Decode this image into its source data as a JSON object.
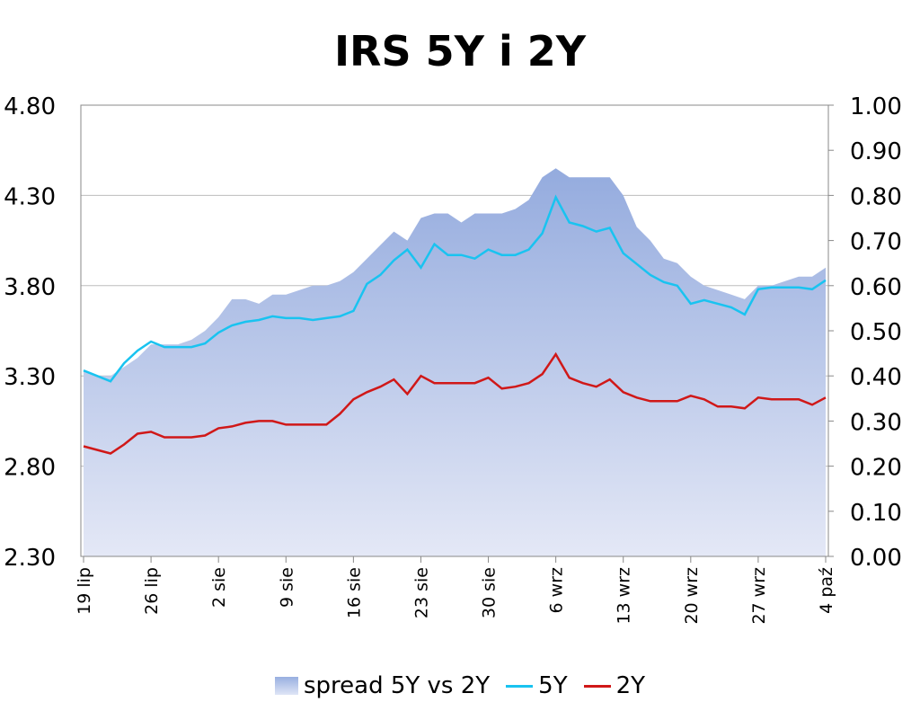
{
  "chart_data": {
    "type": "line",
    "title": "IRS 5Y i 2Y",
    "y_left": {
      "ticks": [
        "2.30",
        "2.80",
        "3.30",
        "3.80",
        "4.30",
        "4.80"
      ],
      "range": [
        2.3,
        4.8
      ]
    },
    "y_right": {
      "ticks": [
        "0.00",
        "0.10",
        "0.20",
        "0.30",
        "0.40",
        "0.50",
        "0.60",
        "0.70",
        "0.80",
        "0.90",
        "1.00"
      ],
      "range": [
        0,
        1.0
      ]
    },
    "x_range": [
      0,
      55
    ],
    "x_ticks": [
      {
        "i": 0,
        "label": "19 lip"
      },
      {
        "i": 5,
        "label": "26 lip"
      },
      {
        "i": 10,
        "label": "2 sie"
      },
      {
        "i": 15,
        "label": "9 sie"
      },
      {
        "i": 20,
        "label": "16 sie"
      },
      {
        "i": 25,
        "label": "23 sie"
      },
      {
        "i": 30,
        "label": "30 sie"
      },
      {
        "i": 35,
        "label": "6 wrz"
      },
      {
        "i": 40,
        "label": "13 wrz"
      },
      {
        "i": 45,
        "label": "20 wrz"
      },
      {
        "i": 50,
        "label": "27 wrz"
      },
      {
        "i": 55,
        "label": "4 paź"
      }
    ],
    "grid": true,
    "legend_position": "bottom",
    "series": [
      {
        "name": "spread 5Y vs 2Y",
        "kind": "area",
        "axis": "right",
        "color": "#98afe0",
        "points": [
          [
            0,
            0.41
          ],
          [
            1,
            0.4
          ],
          [
            2,
            0.4
          ],
          [
            3,
            0.42
          ],
          [
            4,
            0.44
          ],
          [
            5,
            0.47
          ],
          [
            6,
            0.47
          ],
          [
            7,
            0.47
          ],
          [
            8,
            0.48
          ],
          [
            9,
            0.5
          ],
          [
            10,
            0.53
          ],
          [
            11,
            0.57
          ],
          [
            12,
            0.57
          ],
          [
            13,
            0.56
          ],
          [
            14,
            0.58
          ],
          [
            15,
            0.58
          ],
          [
            16,
            0.59
          ],
          [
            17,
            0.6
          ],
          [
            18,
            0.6
          ],
          [
            19,
            0.61
          ],
          [
            20,
            0.63
          ],
          [
            21,
            0.66
          ],
          [
            22,
            0.69
          ],
          [
            23,
            0.72
          ],
          [
            24,
            0.7
          ],
          [
            25,
            0.75
          ],
          [
            26,
            0.76
          ],
          [
            27,
            0.76
          ],
          [
            28,
            0.74
          ],
          [
            29,
            0.76
          ],
          [
            30,
            0.76
          ],
          [
            31,
            0.76
          ],
          [
            32,
            0.77
          ],
          [
            33,
            0.79
          ],
          [
            34,
            0.84
          ],
          [
            35,
            0.86
          ],
          [
            36,
            0.84
          ],
          [
            37,
            0.84
          ],
          [
            38,
            0.84
          ],
          [
            39,
            0.84
          ],
          [
            40,
            0.8
          ],
          [
            41,
            0.73
          ],
          [
            42,
            0.7
          ],
          [
            43,
            0.66
          ],
          [
            44,
            0.65
          ],
          [
            45,
            0.62
          ],
          [
            46,
            0.6
          ],
          [
            47,
            0.59
          ],
          [
            48,
            0.58
          ],
          [
            49,
            0.57
          ],
          [
            50,
            0.6
          ],
          [
            51,
            0.6
          ],
          [
            52,
            0.61
          ],
          [
            53,
            0.62
          ],
          [
            54,
            0.62
          ],
          [
            55,
            0.64
          ]
        ]
      },
      {
        "name": "5Y",
        "kind": "line",
        "axis": "left",
        "color": "#19c3f0",
        "points": [
          [
            0,
            3.33
          ],
          [
            1,
            3.3
          ],
          [
            2,
            3.27
          ],
          [
            3,
            3.37
          ],
          [
            4,
            3.44
          ],
          [
            5,
            3.49
          ],
          [
            6,
            3.46
          ],
          [
            7,
            3.46
          ],
          [
            8,
            3.46
          ],
          [
            9,
            3.48
          ],
          [
            10,
            3.54
          ],
          [
            11,
            3.58
          ],
          [
            12,
            3.6
          ],
          [
            13,
            3.61
          ],
          [
            14,
            3.63
          ],
          [
            15,
            3.62
          ],
          [
            16,
            3.62
          ],
          [
            17,
            3.61
          ],
          [
            18,
            3.62
          ],
          [
            19,
            3.63
          ],
          [
            20,
            3.66
          ],
          [
            21,
            3.81
          ],
          [
            22,
            3.86
          ],
          [
            23,
            3.94
          ],
          [
            24,
            4.0
          ],
          [
            25,
            3.9
          ],
          [
            26,
            4.03
          ],
          [
            27,
            3.97
          ],
          [
            28,
            3.97
          ],
          [
            29,
            3.95
          ],
          [
            30,
            4.0
          ],
          [
            31,
            3.97
          ],
          [
            32,
            3.97
          ],
          [
            33,
            4.0
          ],
          [
            34,
            4.09
          ],
          [
            35,
            4.29
          ],
          [
            36,
            4.15
          ],
          [
            37,
            4.13
          ],
          [
            38,
            4.1
          ],
          [
            39,
            4.12
          ],
          [
            40,
            3.98
          ],
          [
            41,
            3.92
          ],
          [
            42,
            3.86
          ],
          [
            43,
            3.82
          ],
          [
            44,
            3.8
          ],
          [
            45,
            3.7
          ],
          [
            46,
            3.72
          ],
          [
            47,
            3.7
          ],
          [
            48,
            3.68
          ],
          [
            49,
            3.64
          ],
          [
            50,
            3.78
          ],
          [
            51,
            3.79
          ],
          [
            52,
            3.79
          ],
          [
            53,
            3.79
          ],
          [
            54,
            3.78
          ],
          [
            55,
            3.83
          ]
        ]
      },
      {
        "name": "2Y",
        "kind": "line",
        "axis": "left",
        "color": "#d01818",
        "points": [
          [
            0,
            2.91
          ],
          [
            1,
            2.89
          ],
          [
            2,
            2.87
          ],
          [
            3,
            2.92
          ],
          [
            4,
            2.98
          ],
          [
            5,
            2.99
          ],
          [
            6,
            2.96
          ],
          [
            7,
            2.96
          ],
          [
            8,
            2.96
          ],
          [
            9,
            2.97
          ],
          [
            10,
            3.01
          ],
          [
            11,
            3.02
          ],
          [
            12,
            3.04
          ],
          [
            13,
            3.05
          ],
          [
            14,
            3.05
          ],
          [
            15,
            3.03
          ],
          [
            16,
            3.03
          ],
          [
            17,
            3.03
          ],
          [
            18,
            3.03
          ],
          [
            19,
            3.09
          ],
          [
            20,
            3.17
          ],
          [
            21,
            3.21
          ],
          [
            22,
            3.24
          ],
          [
            23,
            3.28
          ],
          [
            24,
            3.2
          ],
          [
            25,
            3.3
          ],
          [
            26,
            3.26
          ],
          [
            27,
            3.26
          ],
          [
            28,
            3.26
          ],
          [
            29,
            3.26
          ],
          [
            30,
            3.29
          ],
          [
            31,
            3.23
          ],
          [
            32,
            3.24
          ],
          [
            33,
            3.26
          ],
          [
            34,
            3.31
          ],
          [
            35,
            3.42
          ],
          [
            36,
            3.29
          ],
          [
            37,
            3.26
          ],
          [
            38,
            3.24
          ],
          [
            39,
            3.28
          ],
          [
            40,
            3.21
          ],
          [
            41,
            3.18
          ],
          [
            42,
            3.16
          ],
          [
            43,
            3.16
          ],
          [
            44,
            3.16
          ],
          [
            45,
            3.19
          ],
          [
            46,
            3.17
          ],
          [
            47,
            3.13
          ],
          [
            48,
            3.13
          ],
          [
            49,
            3.12
          ],
          [
            50,
            3.18
          ],
          [
            51,
            3.17
          ],
          [
            52,
            3.17
          ],
          [
            53,
            3.17
          ],
          [
            54,
            3.14
          ],
          [
            55,
            3.18
          ]
        ]
      }
    ]
  }
}
